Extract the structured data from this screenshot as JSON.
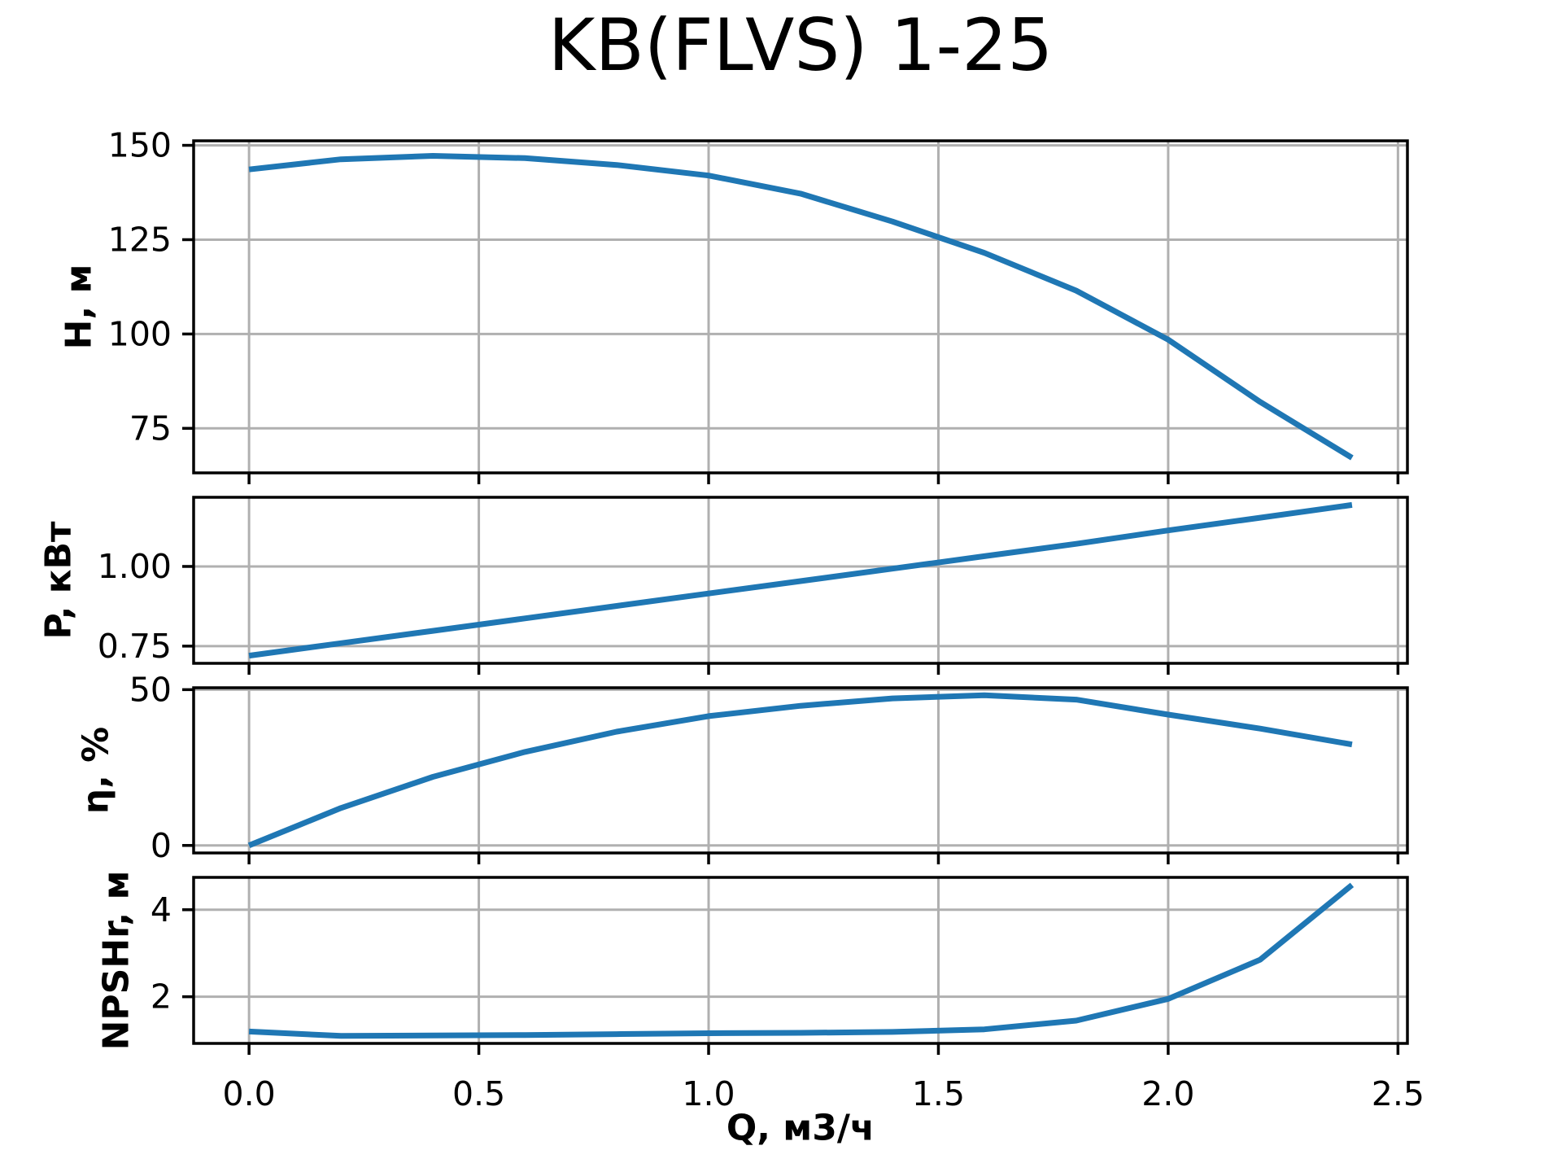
{
  "figure": {
    "title": "KB(FLVS) 1-25"
  },
  "colors": {
    "line": "#1f77b4",
    "grid": "#b0b0b0",
    "spine": "#000000",
    "background": "#ffffff",
    "text": "#000000"
  },
  "x_axis": {
    "label": "Q, м3/ч",
    "xlim": [
      -0.1206,
      2.5206
    ],
    "ticks": [
      0.0,
      0.5,
      1.0,
      1.5,
      2.0,
      2.5
    ],
    "tick_labels": [
      "0.0",
      "0.5",
      "1.0",
      "1.5",
      "2.0",
      "2.5"
    ]
  },
  "chart_data": [
    {
      "type": "line",
      "id": "head",
      "ylabel": "H, м",
      "x": [
        0.0,
        0.2,
        0.4,
        0.6,
        0.8,
        1.0,
        1.2,
        1.4,
        1.6,
        1.8,
        2.0,
        2.2,
        2.4
      ],
      "y": [
        143.6,
        146.3,
        147.2,
        146.6,
        144.8,
        142.0,
        137.2,
        129.8,
        121.5,
        111.5,
        98.5,
        82.0,
        67.2
      ],
      "ylim": [
        63.2,
        151.2
      ],
      "yticks": [
        75,
        100,
        125,
        150
      ],
      "ytick_labels": [
        "75",
        "100",
        "125",
        "150"
      ],
      "grid": true,
      "legend": null
    },
    {
      "type": "line",
      "id": "power",
      "ylabel": "P, кВт",
      "x": [
        0.0,
        0.2,
        0.4,
        0.6,
        0.8,
        1.0,
        1.2,
        1.4,
        1.6,
        1.8,
        2.0,
        2.2,
        2.4
      ],
      "y": [
        0.72,
        0.759,
        0.798,
        0.837,
        0.876,
        0.915,
        0.954,
        0.993,
        1.032,
        1.071,
        1.113,
        1.153,
        1.193
      ],
      "ylim": [
        0.696,
        1.217
      ],
      "yticks": [
        0.75,
        1.0
      ],
      "ytick_labels": [
        "0.75",
        "1.00"
      ],
      "grid": true,
      "legend": null
    },
    {
      "type": "line",
      "id": "efficiency",
      "ylabel": "η, %",
      "x": [
        0.0,
        0.2,
        0.4,
        0.6,
        0.8,
        1.0,
        1.2,
        1.4,
        1.6,
        1.8,
        2.0,
        2.2,
        2.4
      ],
      "y": [
        0.0,
        12.0,
        22.0,
        30.0,
        36.5,
        41.5,
        44.8,
        47.2,
        48.2,
        46.8,
        42.0,
        37.5,
        32.4
      ],
      "ylim": [
        -2.41,
        50.61
      ],
      "yticks": [
        0,
        50
      ],
      "ytick_labels": [
        "0",
        "50"
      ],
      "grid": true,
      "legend": null
    },
    {
      "type": "line",
      "id": "npshr",
      "ylabel": "NPSHr, м",
      "x": [
        0.0,
        0.2,
        0.4,
        0.6,
        0.8,
        1.0,
        1.2,
        1.4,
        1.6,
        1.8,
        2.0,
        2.2,
        2.4
      ],
      "y": [
        1.2,
        1.1,
        1.11,
        1.12,
        1.14,
        1.16,
        1.17,
        1.19,
        1.25,
        1.45,
        1.95,
        2.85,
        4.57
      ],
      "ylim": [
        0.927,
        4.744
      ],
      "yticks": [
        2,
        4
      ],
      "ytick_labels": [
        "2",
        "4"
      ],
      "grid": true,
      "legend": null
    }
  ]
}
